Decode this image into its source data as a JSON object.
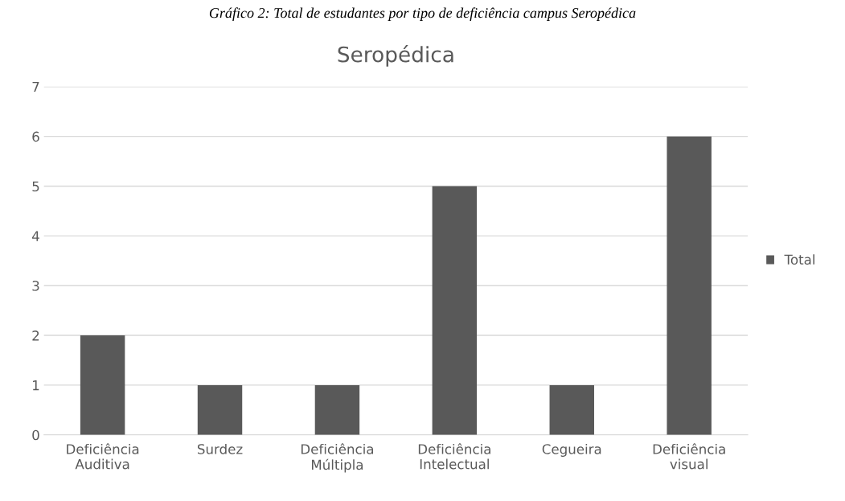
{
  "chart_data": {
    "type": "bar",
    "title": "Seropédica",
    "annotations": [
      "Gráfico 2: Total de estudantes por tipo de deficiência campus Seropédica"
    ],
    "categories": [
      "Deficiência\nAuditiva",
      "Surdez",
      "Deficiência\nMúltipla",
      "Deficiência\nIntelectual",
      "Cegueira",
      "Deficiência\nvisual"
    ],
    "series": [
      {
        "name": "Total",
        "color": "#595959",
        "values": [
          2,
          1,
          1,
          5,
          1,
          6
        ]
      }
    ],
    "ylim": [
      0,
      7
    ],
    "yticks": [
      0,
      1,
      2,
      3,
      4,
      5,
      6,
      7
    ],
    "grid": "y",
    "legend": "right"
  }
}
